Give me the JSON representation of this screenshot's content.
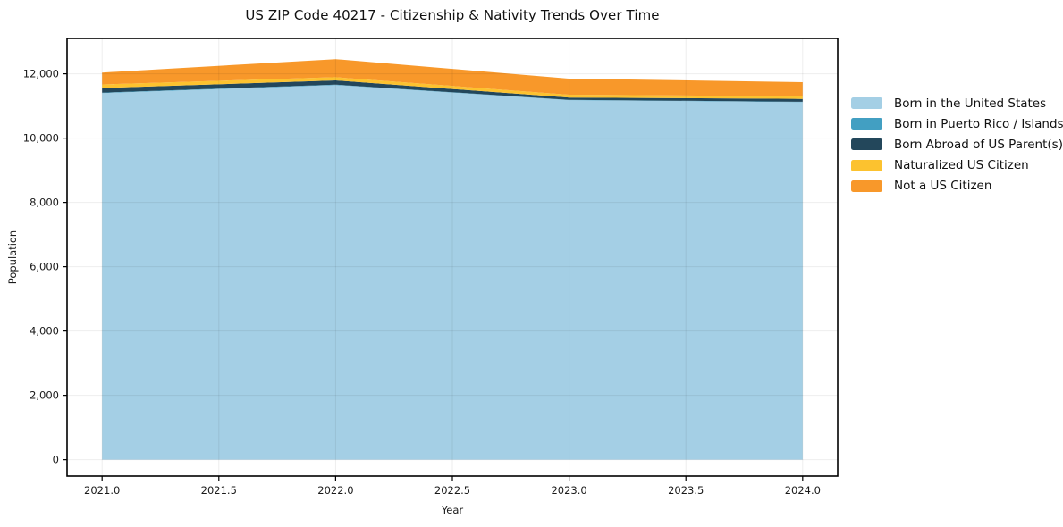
{
  "title": "US ZIP Code 40217 - Citizenship & Nativity Trends Over Time",
  "legend": {
    "items": [
      {
        "label": "Born in the United States",
        "color": "#a4cfe5"
      },
      {
        "label": "Born in Puerto Rico / Islands",
        "color": "#429fc2"
      },
      {
        "label": "Born Abroad of US Parent(s)",
        "color": "#23475b"
      },
      {
        "label": "Naturalized US Citizen",
        "color": "#fcc22f"
      },
      {
        "label": "Not a US Citizen",
        "color": "#f8982a"
      }
    ]
  },
  "chart_data": {
    "type": "area",
    "stacked": true,
    "title": "US ZIP Code 40217 - Citizenship & Nativity Trends Over Time",
    "xlabel": "Year",
    "ylabel": "Population",
    "x": [
      2021,
      2022,
      2023,
      2024
    ],
    "series": [
      {
        "name": "Born in the United States",
        "color": "#a4cfe5",
        "values": [
          11400,
          11650,
          11180,
          11120
        ]
      },
      {
        "name": "Born in Puerto Rico / Islands",
        "color": "#429fc2",
        "values": [
          15,
          15,
          10,
          10
        ]
      },
      {
        "name": "Born Abroad of US Parent(s)",
        "color": "#23475b",
        "values": [
          140,
          130,
          70,
          90
        ]
      },
      {
        "name": "Naturalized US Citizen",
        "color": "#fcc22f",
        "values": [
          115,
          100,
          90,
          80
        ]
      },
      {
        "name": "Not a US Citizen",
        "color": "#f8982a",
        "values": [
          370,
          560,
          500,
          440
        ]
      }
    ],
    "totals": [
      12040,
      12455,
      11850,
      11740
    ],
    "xlim": [
      2020.85,
      2024.15
    ],
    "ylim": [
      -510,
      13100
    ],
    "xticks": {
      "values": [
        2021.0,
        2021.5,
        2022.0,
        2022.5,
        2023.0,
        2023.5,
        2024.0
      ],
      "labels": [
        "2021.0",
        "2021.5",
        "2022.0",
        "2022.5",
        "2023.0",
        "2023.5",
        "2024.0"
      ]
    },
    "yticks": {
      "values": [
        0,
        2000,
        4000,
        6000,
        8000,
        10000,
        12000
      ],
      "labels": [
        "0",
        "2,000",
        "4,000",
        "6,000",
        "8,000",
        "10,000",
        "12,000"
      ]
    },
    "grid": true,
    "legend_position": "right-outside"
  }
}
